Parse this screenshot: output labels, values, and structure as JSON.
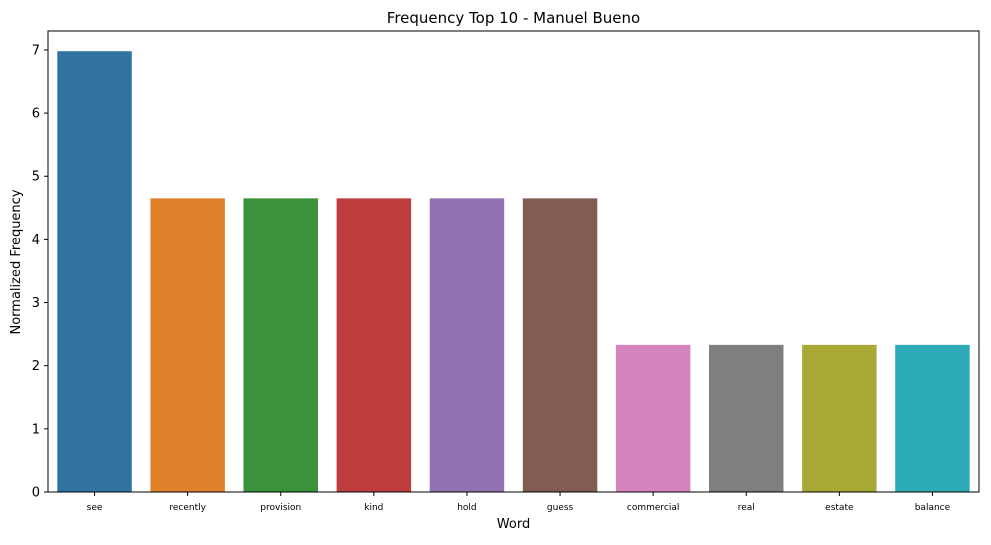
{
  "chart_data": {
    "type": "bar",
    "title": "Frequency Top 10 - Manuel Bueno",
    "xlabel": "Word",
    "ylabel": "Normalized Frequency",
    "categories": [
      "see",
      "recently",
      "provision",
      "kind",
      "hold",
      "guess",
      "commercial",
      "real",
      "estate",
      "balance"
    ],
    "values": [
      6.98,
      4.65,
      4.65,
      4.65,
      4.65,
      4.65,
      2.33,
      2.33,
      2.33,
      2.33
    ],
    "colors": [
      "#3274a1",
      "#e1812c",
      "#3a923a",
      "#c03d3e",
      "#9372b2",
      "#845b53",
      "#d684bd",
      "#7f7f7f",
      "#a9aa35",
      "#2eabb8"
    ],
    "ylim": [
      0,
      7.3
    ],
    "yticks": [
      0,
      1,
      2,
      3,
      4,
      5,
      6,
      7
    ],
    "grid": false,
    "legend": "none"
  }
}
